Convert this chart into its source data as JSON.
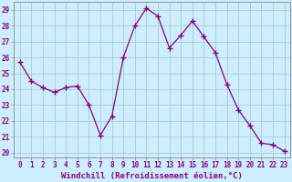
{
  "x": [
    0,
    1,
    2,
    3,
    4,
    5,
    6,
    7,
    8,
    9,
    10,
    11,
    12,
    13,
    14,
    15,
    16,
    17,
    18,
    19,
    20,
    21,
    22,
    23
  ],
  "y": [
    25.7,
    24.5,
    24.1,
    23.8,
    24.1,
    24.2,
    23.0,
    21.1,
    22.3,
    26.0,
    28.0,
    29.1,
    28.6,
    26.6,
    27.4,
    28.3,
    27.3,
    26.3,
    24.3,
    22.7,
    21.7,
    20.6,
    20.5,
    20.1
  ],
  "line_color": "#880088",
  "marker": "+",
  "marker_size": 4,
  "marker_linewidth": 1.0,
  "linewidth": 0.9,
  "background_color": "#cceeff",
  "grid_color": "#aacccc",
  "xlabel": "Windchill (Refroidissement éolien,°C)",
  "ylim": [
    19.7,
    29.5
  ],
  "xlim": [
    -0.5,
    23.5
  ],
  "yticks": [
    20,
    21,
    22,
    23,
    24,
    25,
    26,
    27,
    28,
    29
  ],
  "xticks": [
    0,
    1,
    2,
    3,
    4,
    5,
    6,
    7,
    8,
    9,
    10,
    11,
    12,
    13,
    14,
    15,
    16,
    17,
    18,
    19,
    20,
    21,
    22,
    23
  ],
  "tick_fontsize": 5.5,
  "xlabel_fontsize": 6.5,
  "label_color": "#880088",
  "spine_color": "#888888",
  "tick_color": "#888888"
}
